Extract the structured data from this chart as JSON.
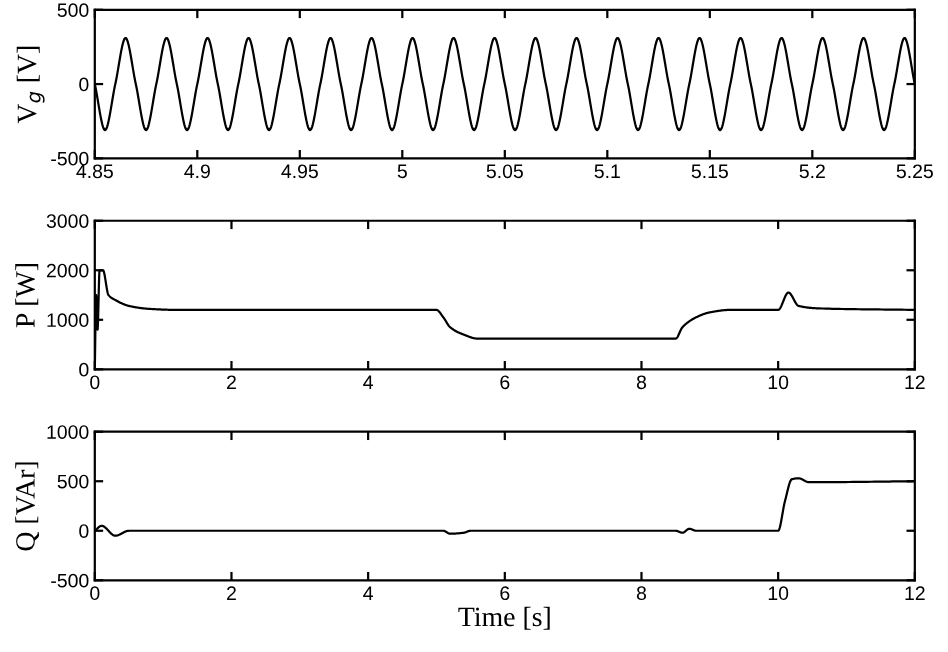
{
  "chart_data": [
    {
      "type": "line",
      "ylabel": "V$_{g}$ [V]",
      "xlim": [
        4.85,
        5.25
      ],
      "ylim": [
        -500,
        500
      ],
      "xticks": [
        4.85,
        4.9,
        4.95,
        5,
        5.05,
        5.1,
        5.15,
        5.2,
        5.25
      ],
      "yticks": [
        -500,
        0,
        500
      ],
      "grid": false,
      "legend": false,
      "series": [
        {
          "color": "#000000",
          "x": [
            4.85,
            4.855,
            4.86,
            4.865,
            4.87,
            4.875,
            4.88,
            4.885,
            4.89,
            4.895,
            4.9,
            4.905,
            4.91,
            4.915,
            4.92,
            4.925,
            4.93,
            4.935,
            4.94,
            4.945,
            4.95,
            4.955,
            4.96,
            4.965,
            4.97,
            4.975,
            4.98,
            4.985,
            4.99,
            4.995,
            5,
            5.005,
            5.01,
            5.015,
            5.02,
            5.025,
            5.03,
            5.035,
            5.04,
            5.045,
            5.05,
            5.055,
            5.06,
            5.065,
            5.07,
            5.075,
            5.08,
            5.085,
            5.09,
            5.095,
            5.1,
            5.105,
            5.11,
            5.115,
            5.12,
            5.125,
            5.13,
            5.135,
            5.14,
            5.145,
            5.15,
            5.155,
            5.16,
            5.165,
            5.17,
            5.175,
            5.18,
            5.185,
            5.19,
            5.195,
            5.2,
            5.205,
            5.21,
            5.215,
            5.22,
            5.225,
            5.23,
            5.235,
            5.24,
            5.245,
            5.25
          ],
          "values": [
            0,
            -310,
            0,
            310,
            0,
            -310,
            0,
            310,
            0,
            -310,
            0,
            310,
            0,
            -310,
            0,
            310,
            0,
            -310,
            0,
            310,
            0,
            -310,
            0,
            310,
            0,
            -310,
            0,
            310,
            0,
            -310,
            0,
            310,
            0,
            -310,
            0,
            310,
            0,
            -310,
            0,
            310,
            0,
            -310,
            0,
            310,
            0,
            -310,
            0,
            310,
            0,
            -310,
            0,
            310,
            0,
            -310,
            0,
            310,
            0,
            -310,
            0,
            310,
            0,
            -310,
            0,
            310,
            0,
            -310,
            0,
            310,
            0,
            -310,
            0,
            310,
            0,
            -310,
            0,
            310,
            0,
            -310,
            0,
            310,
            0
          ]
        }
      ]
    },
    {
      "type": "line",
      "ylabel": "P [W]",
      "xlim": [
        0,
        12
      ],
      "ylim": [
        0,
        3000
      ],
      "xticks": [
        0,
        2,
        4,
        6,
        8,
        10,
        12
      ],
      "yticks": [
        0,
        1000,
        2000,
        3000
      ],
      "grid": false,
      "legend": false,
      "series": [
        {
          "color": "#000000",
          "x": [
            0,
            0.02,
            0.04,
            0.07,
            0.12,
            0.2,
            0.3,
            0.5,
            0.8,
            1.2,
            5.0,
            5.1,
            5.2,
            5.4,
            5.6,
            8.5,
            8.6,
            8.8,
            9.0,
            9.3,
            10.0,
            10.15,
            10.3,
            10.6,
            12
          ],
          "values": [
            0,
            1500,
            800,
            2000,
            2000,
            1500,
            1400,
            1280,
            1220,
            1200,
            1200,
            1050,
            850,
            700,
            620,
            620,
            850,
            1050,
            1150,
            1200,
            1200,
            1550,
            1280,
            1230,
            1200
          ]
        }
      ]
    },
    {
      "type": "line",
      "ylabel": "Q [VAr]",
      "xlabel": "Time [s]",
      "xlim": [
        0,
        12
      ],
      "ylim": [
        -500,
        1000
      ],
      "xticks": [
        0,
        2,
        4,
        6,
        8,
        10,
        12
      ],
      "yticks": [
        -500,
        0,
        500,
        1000
      ],
      "grid": false,
      "legend": false,
      "series": [
        {
          "color": "#000000",
          "x": [
            0,
            0.1,
            0.3,
            0.5,
            5.1,
            5.2,
            5.4,
            5.5,
            8.5,
            8.6,
            8.7,
            8.8,
            10.0,
            10.1,
            10.2,
            10.3,
            10.45,
            12
          ],
          "values": [
            0,
            50,
            -50,
            0,
            0,
            -30,
            -20,
            0,
            0,
            -20,
            20,
            0,
            0,
            300,
            520,
            530,
            490,
            500
          ]
        }
      ]
    }
  ]
}
